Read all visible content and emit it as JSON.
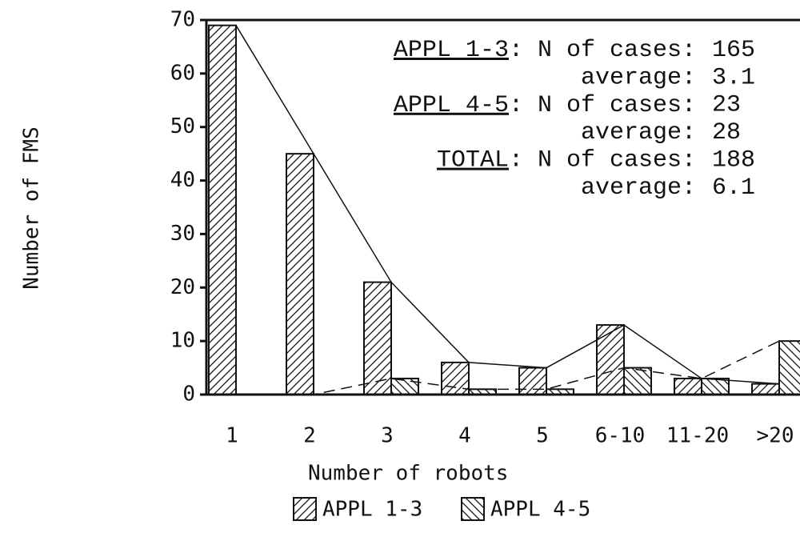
{
  "chart_data": {
    "type": "bar",
    "categories": [
      "1",
      "2",
      "3",
      "4",
      "5",
      "6-10",
      "11-20",
      ">20"
    ],
    "series": [
      {
        "name": "APPL 1-3",
        "color": "#111111",
        "hatch": "forward",
        "line": "solid",
        "values": [
          69,
          45,
          21,
          6,
          5,
          13,
          3,
          2
        ]
      },
      {
        "name": "APPL 4-5",
        "color": "#111111",
        "hatch": "backward",
        "line": "dashed",
        "values": [
          0,
          0,
          3,
          1,
          1,
          5,
          3,
          10
        ]
      }
    ],
    "ylim": [
      0,
      70
    ],
    "yticks": [
      0,
      10,
      20,
      30,
      40,
      50,
      60,
      70
    ],
    "xlabel": "Number of robots",
    "ylabel": "Number of FMS",
    "annotations": [
      {
        "label": "APPL 1-3",
        "text": ": N of cases:",
        "value": 165
      },
      {
        "text": "average:",
        "value": 3.1
      },
      {
        "label": "APPL 4-5",
        "text": ": N of cases:",
        "value": 23
      },
      {
        "text": "average:",
        "value": 28
      },
      {
        "label": "TOTAL",
        "text": ": N of cases:",
        "value": 188
      },
      {
        "text": "average:",
        "value": 6.1
      }
    ]
  }
}
